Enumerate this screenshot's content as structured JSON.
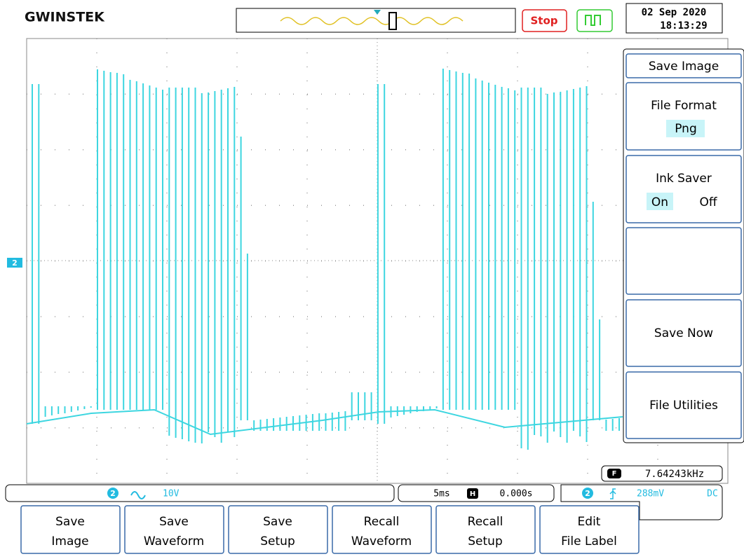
{
  "header": {
    "brand": "GWINSTEK",
    "run_state": "Stop",
    "date": "02 Sep 2020",
    "time": "18:13:29"
  },
  "side_menu": {
    "title": "Save Image",
    "file_format": {
      "label": "File Format",
      "value": "Png"
    },
    "ink_saver": {
      "label": "Ink Saver",
      "on": "On",
      "off": "Off"
    },
    "save_now": "Save Now",
    "file_utilities": "File Utilities"
  },
  "screen": {
    "channel_marker": "2",
    "frequency_icon": "F",
    "frequency": "7.64243kHz"
  },
  "status": {
    "channel": "2",
    "scale": "10V",
    "timebase": "5ms",
    "h_icon": "H",
    "position": "0.000s",
    "trigger_channel": "2",
    "trigger_level": "288mV",
    "coupling": "DC"
  },
  "buttons": [
    [
      "Save",
      "Image"
    ],
    [
      "Save",
      "Waveform"
    ],
    [
      "Save",
      "Setup"
    ],
    [
      "Recall",
      "Waveform"
    ],
    [
      "Recall",
      "Setup"
    ],
    [
      "Edit",
      "File Label"
    ]
  ]
}
